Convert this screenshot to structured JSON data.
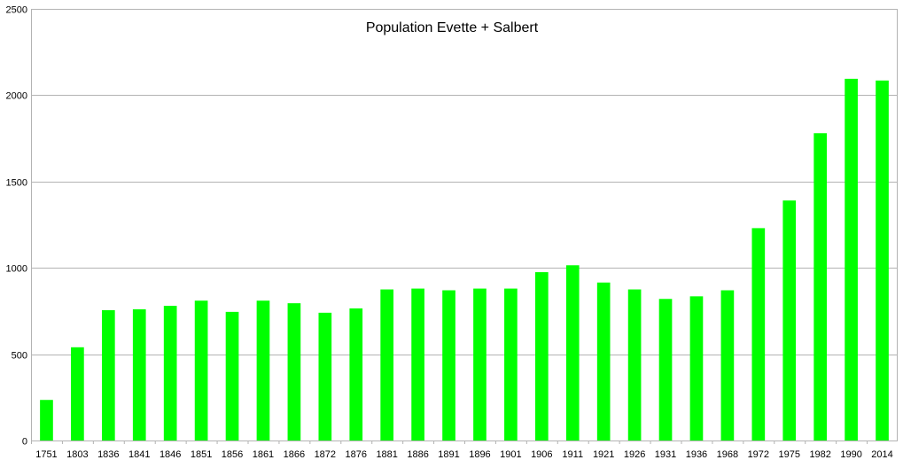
{
  "chart_data": {
    "type": "bar",
    "title": "Population Evette + Salbert",
    "xlabel": "",
    "ylabel": "",
    "ylim": [
      0,
      2500
    ],
    "yticks": [
      0,
      500,
      1000,
      1500,
      2000,
      2500
    ],
    "grid": true,
    "legend": "none",
    "categories": [
      "1751",
      "1803",
      "1836",
      "1841",
      "1846",
      "1851",
      "1856",
      "1861",
      "1866",
      "1872",
      "1876",
      "1881",
      "1886",
      "1891",
      "1896",
      "1901",
      "1906",
      "1911",
      "1921",
      "1926",
      "1931",
      "1936",
      "1968",
      "1972",
      "1975",
      "1982",
      "1990",
      "2014"
    ],
    "series": [
      {
        "color": "#00ff00",
        "values": [
          235,
          540,
          755,
          760,
          780,
          810,
          745,
          810,
          795,
          740,
          765,
          875,
          880,
          870,
          880,
          880,
          975,
          1015,
          915,
          875,
          820,
          835,
          870,
          1230,
          1390,
          1780,
          2095,
          2085
        ]
      }
    ]
  },
  "colors": {
    "bar": "#00ff00",
    "grid": "#b3b3b3",
    "axis": "#b3b3b3",
    "text": "#000000"
  }
}
